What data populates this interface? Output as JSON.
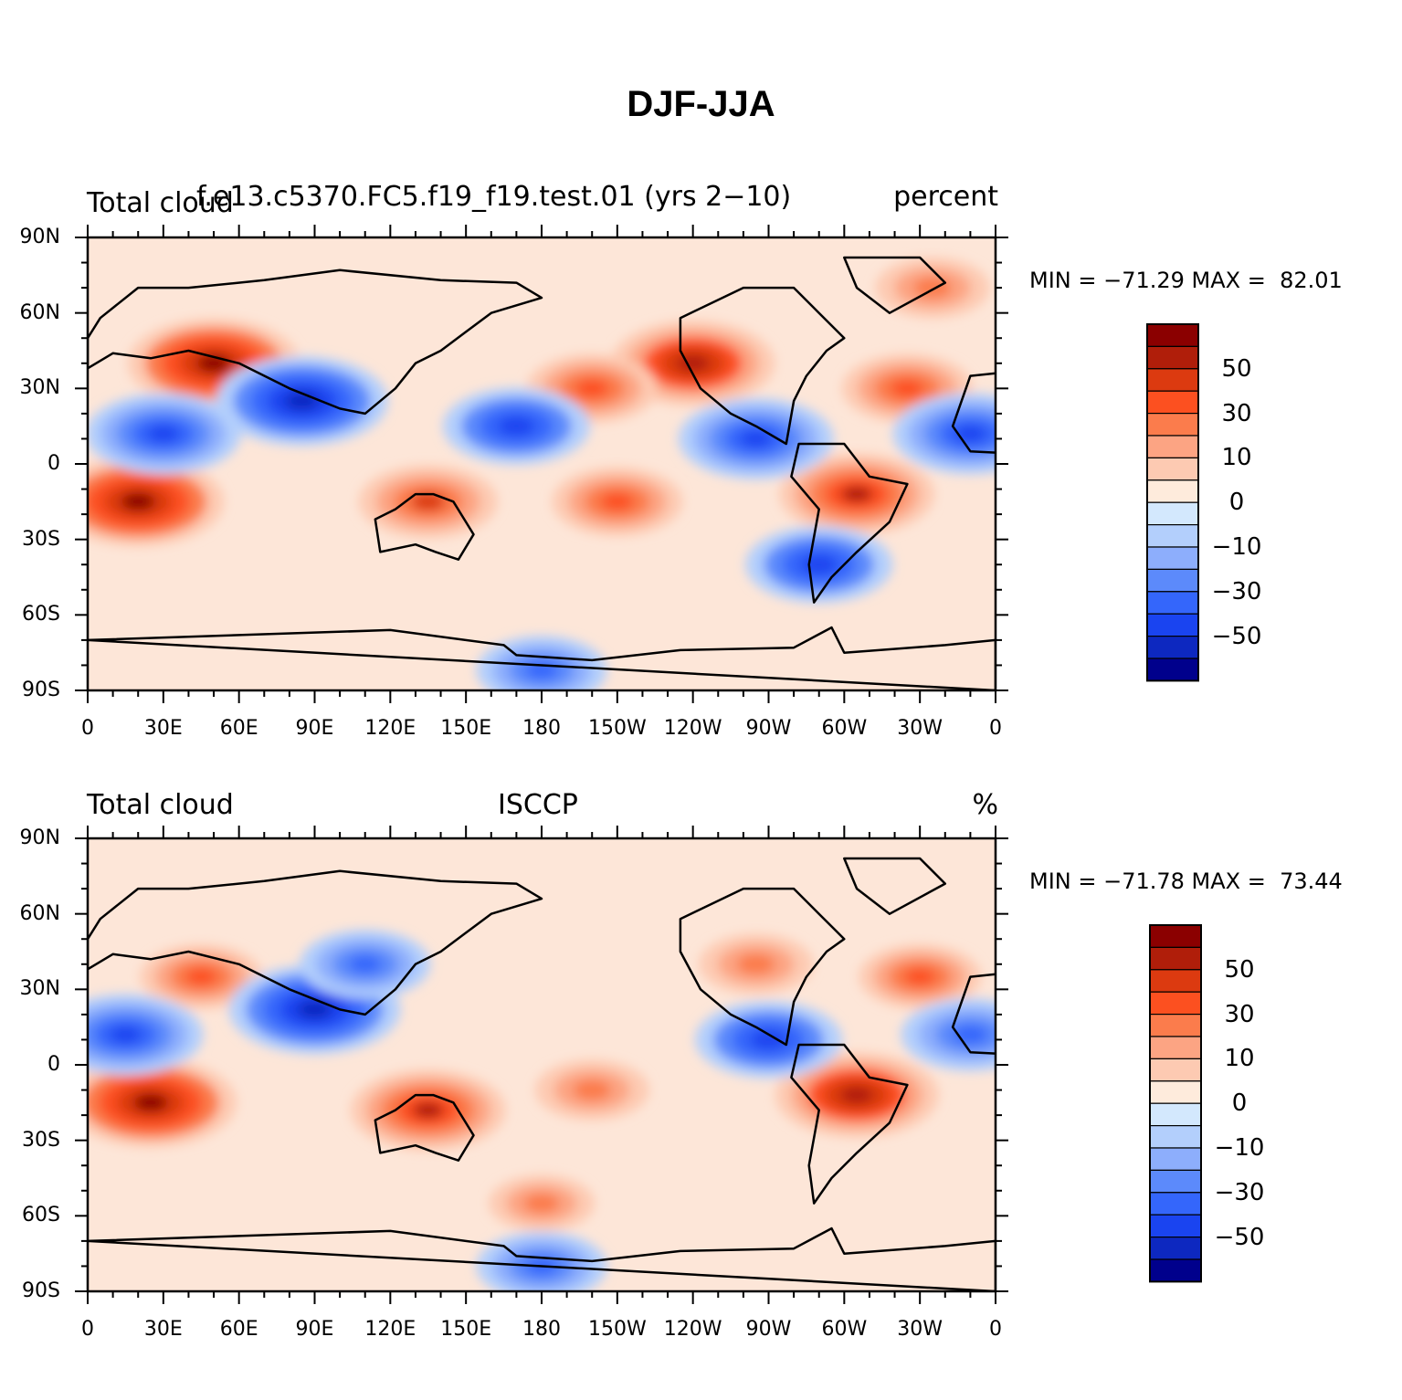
{
  "title": "DJF-JJA",
  "lat_labels": [
    "90N",
    "60N",
    "30N",
    "0",
    "30S",
    "60S",
    "90S"
  ],
  "lon_labels": [
    "0",
    "30E",
    "60E",
    "90E",
    "120E",
    "150E",
    "180",
    "150W",
    "120W",
    "90W",
    "60W",
    "30W",
    "0"
  ],
  "colorbar": {
    "colors": [
      "#8b0000",
      "#b01e0a",
      "#dc3a10",
      "#fc5020",
      "#fb7c4c",
      "#fca483",
      "#fdcab2",
      "#feebdc",
      "#d3e8fd",
      "#b3cffc",
      "#8daefc",
      "#5c8afb",
      "#3466fb",
      "#1a44f0",
      "#0d28c0",
      "#00008c"
    ],
    "labels": [
      "50",
      "30",
      "10",
      "0",
      "−10",
      "−30",
      "−50"
    ]
  },
  "panels": [
    {
      "left_label": "Total cloud",
      "center_label": "f.e13.c5370.FC5.f19_f19.test.01 (yrs 2−10)",
      "right_label": "percent",
      "stats": "MIN = −71.29 MAX =  82.01"
    },
    {
      "left_label": "Total cloud",
      "center_label": "ISCCP",
      "right_label": "%",
      "stats": "MIN = −71.78 MAX =  73.44"
    }
  ],
  "chart_data": [
    {
      "type": "heatmap",
      "title": "DJF-JJA",
      "variable": "Total cloud",
      "source": "f.e13.c5370.FC5.f19_f19.test.01 (yrs 2−10)",
      "units": "percent",
      "min": -71.29,
      "max": 82.01,
      "x_range": [
        "0",
        "0"
      ],
      "y_range": [
        "90S",
        "90N"
      ],
      "contour_levels": [
        -60,
        -50,
        -40,
        -30,
        -20,
        -10,
        -5,
        0,
        5,
        10,
        20,
        30,
        40,
        50,
        60
      ],
      "features": [
        {
          "lon": 50,
          "lat": 40,
          "value": 60
        },
        {
          "lon": 20,
          "lat": -15,
          "value": 60
        },
        {
          "lon": 240,
          "lat": 40,
          "value": 55
        },
        {
          "lon": 305,
          "lat": -12,
          "value": 50
        },
        {
          "lon": 135,
          "lat": -15,
          "value": 40
        },
        {
          "lon": 210,
          "lat": -15,
          "value": 35
        },
        {
          "lon": 200,
          "lat": 30,
          "value": 35
        },
        {
          "lon": 325,
          "lat": 30,
          "value": 35
        },
        {
          "lon": 335,
          "lat": 70,
          "value": 25
        },
        {
          "lon": 85,
          "lat": 25,
          "value": -60
        },
        {
          "lon": 30,
          "lat": 12,
          "value": -50
        },
        {
          "lon": 170,
          "lat": 15,
          "value": -45
        },
        {
          "lon": 265,
          "lat": 10,
          "value": -50
        },
        {
          "lon": 350,
          "lat": 12,
          "value": -50
        },
        {
          "lon": 290,
          "lat": -40,
          "value": -45
        },
        {
          "lon": 180,
          "lat": -82,
          "value": -35
        }
      ]
    },
    {
      "type": "heatmap",
      "title": "DJF-JJA",
      "variable": "Total cloud",
      "source": "ISCCP",
      "units": "%",
      "min": -71.78,
      "max": 73.44,
      "x_range": [
        "0",
        "0"
      ],
      "y_range": [
        "90S",
        "90N"
      ],
      "contour_levels": [
        -60,
        -50,
        -40,
        -30,
        -20,
        -10,
        -5,
        0,
        5,
        10,
        20,
        30,
        40,
        50,
        60
      ],
      "features": [
        {
          "lon": 25,
          "lat": -15,
          "value": 60
        },
        {
          "lon": 305,
          "lat": -12,
          "value": 55
        },
        {
          "lon": 135,
          "lat": -18,
          "value": 50
        },
        {
          "lon": 45,
          "lat": 35,
          "value": 30
        },
        {
          "lon": 330,
          "lat": 35,
          "value": 30
        },
        {
          "lon": 265,
          "lat": 40,
          "value": 25
        },
        {
          "lon": 200,
          "lat": -10,
          "value": 25
        },
        {
          "lon": 180,
          "lat": -55,
          "value": 20
        },
        {
          "lon": 90,
          "lat": 22,
          "value": -60
        },
        {
          "lon": 110,
          "lat": 40,
          "value": -35
        },
        {
          "lon": 15,
          "lat": 12,
          "value": -50
        },
        {
          "lon": 270,
          "lat": 10,
          "value": -45
        },
        {
          "lon": 350,
          "lat": 12,
          "value": -40
        },
        {
          "lon": 180,
          "lat": -80,
          "value": -35
        }
      ]
    }
  ]
}
